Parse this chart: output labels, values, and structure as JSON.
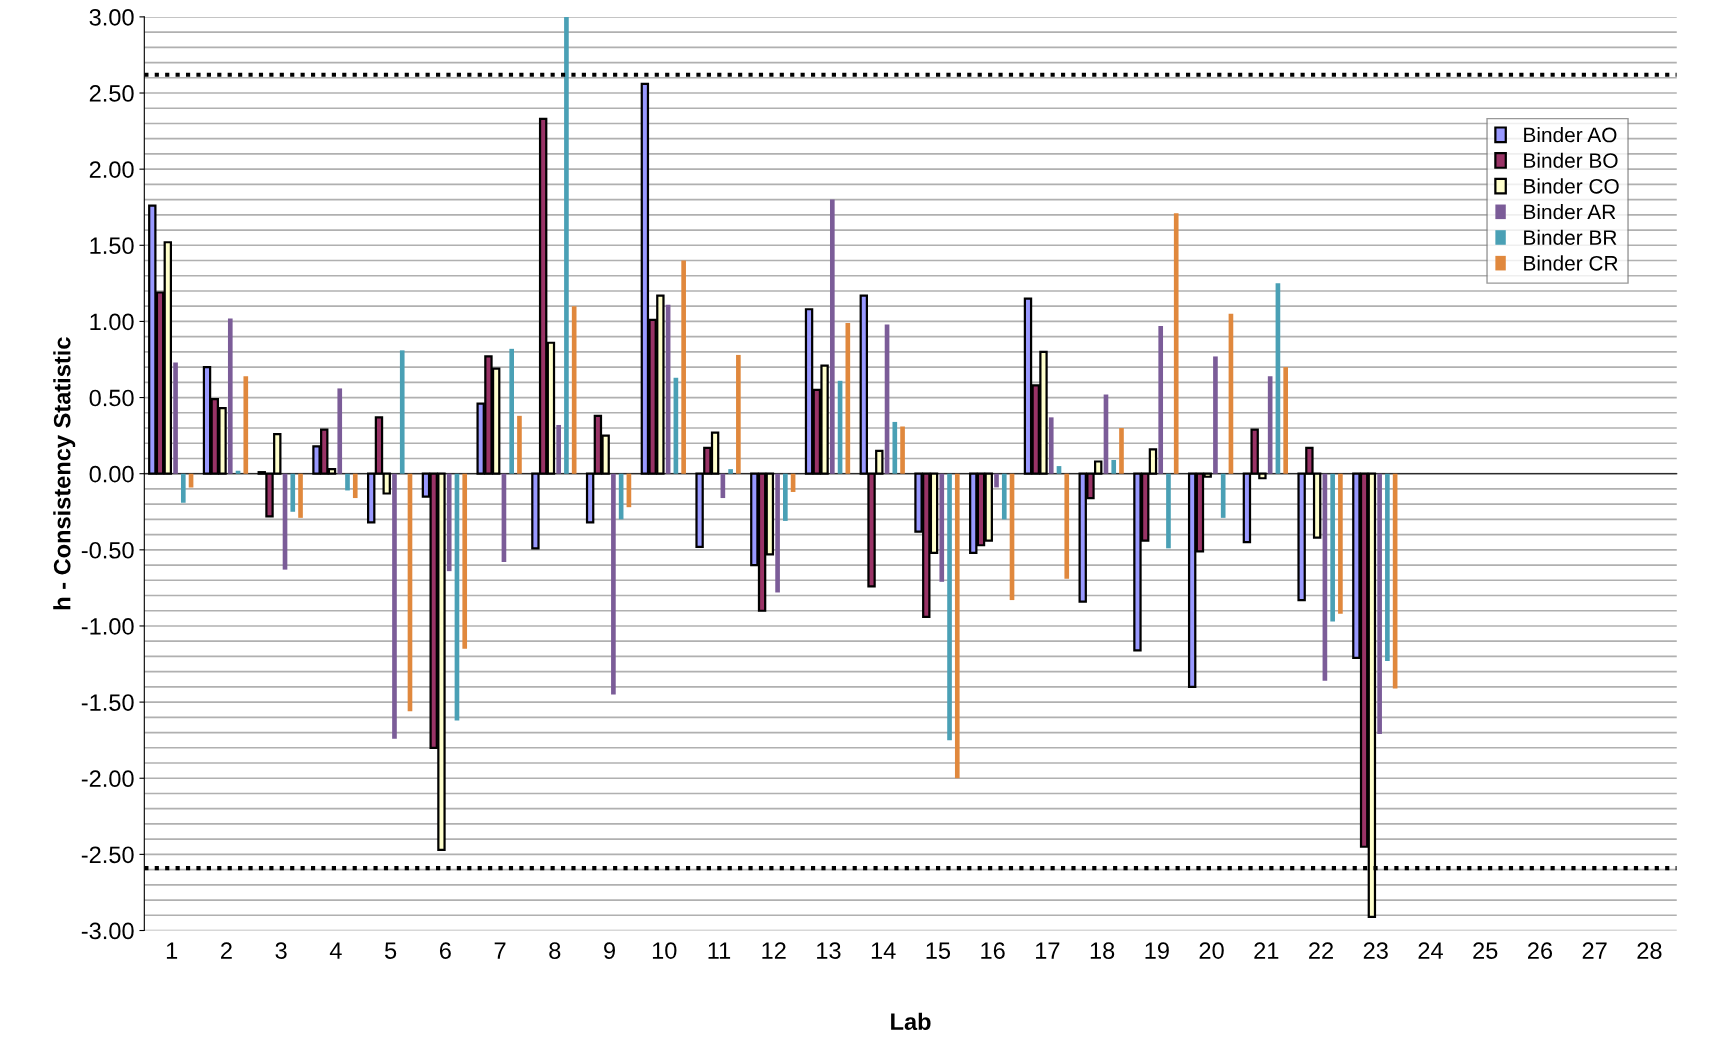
{
  "chart_data": {
    "type": "bar",
    "xlabel": "Lab",
    "ylabel": "h - Consistency Statistic",
    "categories": [
      "1",
      "2",
      "3",
      "4",
      "5",
      "6",
      "7",
      "8",
      "9",
      "10",
      "11",
      "12",
      "13",
      "14",
      "15",
      "16",
      "17",
      "18",
      "19",
      "20",
      "21",
      "22",
      "23",
      "24",
      "25",
      "26",
      "27",
      "28"
    ],
    "series": [
      {
        "name": "Binder AO",
        "color": "#9999ff",
        "values": [
          1.76,
          0.7,
          0.01,
          0.18,
          -0.32,
          -0.15,
          0.46,
          -0.49,
          -0.32,
          2.56,
          -0.48,
          -0.6,
          1.08,
          1.17,
          -0.38,
          -0.52,
          1.15,
          -0.84,
          -1.16,
          -1.4,
          -0.45,
          -0.83,
          -1.21,
          null,
          null,
          null,
          null,
          null
        ]
      },
      {
        "name": "Binder BO",
        "color": "#993366",
        "values": [
          1.19,
          0.49,
          -0.28,
          0.29,
          0.37,
          -1.8,
          0.77,
          2.33,
          0.38,
          1.01,
          0.17,
          -0.9,
          0.55,
          -0.74,
          -0.94,
          -0.47,
          0.58,
          -0.16,
          -0.44,
          -0.51,
          0.29,
          0.17,
          -2.45,
          null,
          null,
          null,
          null,
          null
        ]
      },
      {
        "name": "Binder CO",
        "color": "#ffffcc",
        "values": [
          1.52,
          0.43,
          0.26,
          0.03,
          -0.13,
          -2.47,
          0.69,
          0.86,
          0.25,
          1.17,
          0.27,
          -0.53,
          0.71,
          0.15,
          -0.52,
          -0.44,
          0.8,
          0.08,
          0.16,
          -0.02,
          -0.03,
          -0.42,
          -2.91,
          null,
          null,
          null,
          null,
          null
        ]
      },
      {
        "name": "Binder AR",
        "color": "#7b5c98",
        "values": [
          0.73,
          1.02,
          -0.63,
          0.56,
          -1.74,
          -0.64,
          -0.58,
          0.32,
          -1.45,
          1.11,
          -0.16,
          -0.78,
          1.8,
          0.98,
          -0.71,
          -0.09,
          0.37,
          0.52,
          0.97,
          0.77,
          0.64,
          -1.36,
          -1.71,
          null,
          null,
          null,
          null,
          null
        ]
      },
      {
        "name": "Binder BR",
        "color": "#4aa0b5",
        "values": [
          -0.19,
          0.02,
          -0.25,
          -0.11,
          0.81,
          -1.62,
          0.82,
          3.0,
          -0.3,
          0.63,
          0.03,
          -0.31,
          0.61,
          0.34,
          -1.75,
          -0.3,
          0.05,
          0.09,
          -0.49,
          -0.29,
          1.25,
          -0.97,
          -1.23,
          null,
          null,
          null,
          null,
          null
        ]
      },
      {
        "name": "Binder CR",
        "color": "#e0883d",
        "values": [
          -0.09,
          0.64,
          -0.29,
          -0.16,
          -1.56,
          -1.15,
          0.38,
          1.1,
          -0.22,
          1.4,
          0.78,
          -0.12,
          0.99,
          0.31,
          -2.0,
          -0.83,
          -0.69,
          0.3,
          1.71,
          1.05,
          0.7,
          -0.92,
          -1.41,
          null,
          null,
          null,
          null,
          null
        ]
      }
    ],
    "ylim": [
      -3.0,
      3.0
    ],
    "yticks": [
      {
        "value": -3.0,
        "label": "-3.00"
      },
      {
        "value": -2.5,
        "label": "-2.50"
      },
      {
        "value": -2.0,
        "label": "-2.00"
      },
      {
        "value": -1.5,
        "label": "-1.50"
      },
      {
        "value": -1.0,
        "label": "-1.00"
      },
      {
        "value": -0.5,
        "label": "-0.50"
      },
      {
        "value": 0.0,
        "label": "0.00"
      },
      {
        "value": 0.5,
        "label": "0.50"
      },
      {
        "value": 1.0,
        "label": "1.00"
      },
      {
        "value": 1.5,
        "label": "1.50"
      },
      {
        "value": 2.0,
        "label": "2.00"
      },
      {
        "value": 2.5,
        "label": "2.50"
      },
      {
        "value": 3.0,
        "label": "3.00"
      }
    ],
    "ref_lines": [
      {
        "axis": "y",
        "value": 2.62,
        "color": "#000000",
        "line_style": "dotted"
      },
      {
        "axis": "y",
        "value": -2.59,
        "color": "#000000",
        "line_style": "dotted"
      }
    ],
    "grid": "y",
    "legend": "top right"
  }
}
